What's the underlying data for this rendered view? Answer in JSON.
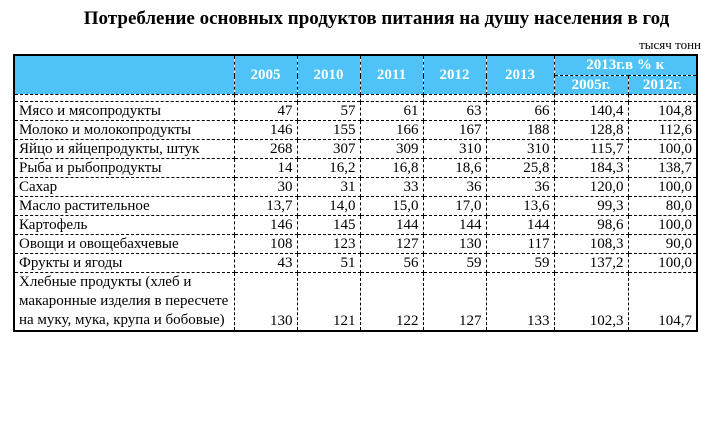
{
  "title": "Потребление основных продуктов питания на душу населения в год",
  "units": "тысяч тонн",
  "header": {
    "years": [
      "2005",
      "2010",
      "2011",
      "2012",
      "2013"
    ],
    "pct_group": "2013г.в % к",
    "pct_cols": [
      "2005г.",
      "2012г."
    ]
  },
  "rows": [
    {
      "name": "Мясо и мясопродукты",
      "values": [
        "47",
        "57",
        "61",
        "63",
        "66",
        "140,4",
        "104,8"
      ]
    },
    {
      "name": "Молоко и молокопродукты",
      "values": [
        "146",
        "155",
        "166",
        "167",
        "188",
        "128,8",
        "112,6"
      ]
    },
    {
      "name": " Яйцо и яйцепродукты, штук",
      "values": [
        "268",
        "307",
        "309",
        "310",
        "310",
        "115,7",
        "100,0"
      ]
    },
    {
      "name": " Рыба и рыбопродукты",
      "values": [
        "14",
        "16,2",
        "16,8",
        "18,6",
        "25,8",
        "184,3",
        "138,7"
      ]
    },
    {
      "name": "Сахар",
      "values": [
        "30",
        "31",
        "33",
        "36",
        "36",
        "120,0",
        "100,0"
      ]
    },
    {
      "name": "Масло растительное",
      "values": [
        "13,7",
        "14,0",
        "15,0",
        "17,0",
        "13,6",
        "99,3",
        "80,0"
      ]
    },
    {
      "name": "Картофель",
      "values": [
        "146",
        "145",
        "144",
        "144",
        "144",
        "98,6",
        "100,0"
      ]
    },
    {
      "name": "Овощи и овощебахчевые",
      "values": [
        "108",
        "123",
        "127",
        "130",
        "117",
        "108,3",
        "90,0"
      ]
    },
    {
      "name": " Фрукты и ягоды",
      "values": [
        "43",
        "51",
        "56",
        "59",
        "59",
        "137,2",
        "100,0"
      ]
    },
    {
      "name": " Хлебные продукты (хлеб и макаронные изделия в пересчете на муку, мука, крупа и бобовые)",
      "values": [
        "130",
        "121",
        "122",
        "127",
        "133",
        "102,3",
        "104,7"
      ]
    }
  ]
}
